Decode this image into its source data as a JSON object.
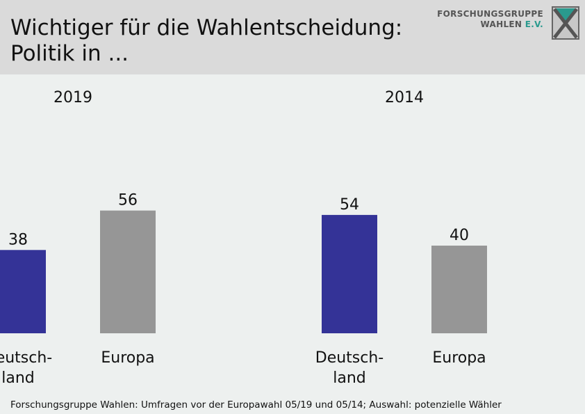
{
  "header": {
    "title_line1": "Wichtiger für die Wahlentscheidung:",
    "title_line2": "Politik in ...",
    "logo_line1": "FORSCHUNGSGRUPPE",
    "logo_line2_a": "WAHLEN ",
    "logo_line2_b": "E.V."
  },
  "colors": {
    "deutschland": "#343397",
    "europa": "#969696",
    "header_bg": "#dadada",
    "chart_bg": "#edf0ef",
    "logo_accent": "#2a9a8e"
  },
  "chart_data": {
    "type": "bar",
    "ylim": [
      0,
      100
    ],
    "groups": [
      {
        "label": "2019",
        "bars": [
          {
            "category_line1": "Deutsch-",
            "category_line2": "land",
            "value": 38,
            "color_key": "deutschland"
          },
          {
            "category_line1": "Europa",
            "category_line2": "",
            "value": 56,
            "color_key": "europa"
          }
        ]
      },
      {
        "label": "2014",
        "bars": [
          {
            "category_line1": "Deutsch-",
            "category_line2": "land",
            "value": 54,
            "color_key": "deutschland"
          },
          {
            "category_line1": "Europa",
            "category_line2": "",
            "value": 40,
            "color_key": "europa"
          }
        ]
      }
    ]
  },
  "footnote": "Forschungsgruppe Wahlen: Umfragen vor der Europawahl 05/19 und 05/14; Auswahl: potenzielle Wähler"
}
